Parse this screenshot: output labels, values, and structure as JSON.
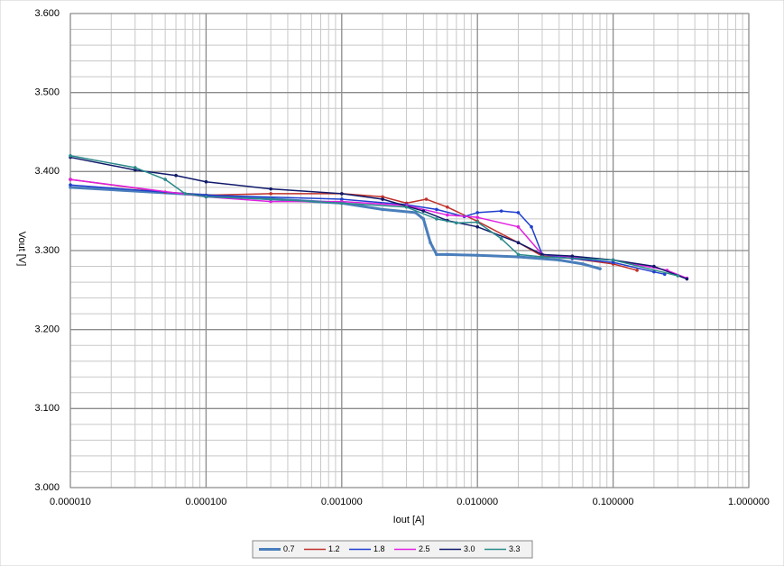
{
  "chart_data": {
    "type": "line",
    "x_label": "Iout [A]",
    "y_label": "Vout [V]",
    "xlog": true,
    "grid": true,
    "minor_grid": true,
    "xlim": [
      1e-05,
      1
    ],
    "ylim": [
      3.0,
      3.6
    ],
    "xticks": [
      {
        "value": 1e-05,
        "label": "0.000010"
      },
      {
        "value": 0.0001,
        "label": "0.000100"
      },
      {
        "value": 0.001,
        "label": "0.001000"
      },
      {
        "value": 0.01,
        "label": "0.010000"
      },
      {
        "value": 0.1,
        "label": "0.100000"
      },
      {
        "value": 1,
        "label": "1.000000"
      }
    ],
    "yticks": [
      {
        "value": 3.0,
        "label": "3.000"
      },
      {
        "value": 3.1,
        "label": "3.100"
      },
      {
        "value": 3.2,
        "label": "3.200"
      },
      {
        "value": 3.3,
        "label": "3.300"
      },
      {
        "value": 3.4,
        "label": "3.400"
      },
      {
        "value": 3.5,
        "label": "3.500"
      },
      {
        "value": 3.6,
        "label": "3.600"
      }
    ],
    "legend": "bottom",
    "series": [
      {
        "name": "0.7",
        "color": "#4a7ebb",
        "width": 3,
        "x": [
          1e-05,
          0.0001,
          0.001,
          0.002,
          0.0035,
          0.004,
          0.0045,
          0.005,
          0.006,
          0.01,
          0.02,
          0.04,
          0.06,
          0.08
        ],
        "values": [
          3.38,
          3.37,
          3.36,
          3.352,
          3.348,
          3.34,
          3.31,
          3.295,
          3.295,
          3.294,
          3.292,
          3.288,
          3.283,
          3.277
        ]
      },
      {
        "name": "1.2",
        "color": "#c0302a",
        "width": 1.5,
        "x": [
          1e-05,
          5e-05,
          0.0001,
          0.0003,
          0.001,
          0.002,
          0.003,
          0.0042,
          0.006,
          0.01,
          0.02,
          0.03,
          0.05,
          0.1,
          0.15
        ],
        "values": [
          3.39,
          3.374,
          3.37,
          3.372,
          3.372,
          3.368,
          3.36,
          3.365,
          3.355,
          3.337,
          3.31,
          3.293,
          3.29,
          3.283,
          3.275
        ]
      },
      {
        "name": "1.8",
        "color": "#1f3fcf",
        "width": 1.5,
        "x": [
          1e-05,
          0.0001,
          0.001,
          0.003,
          0.005,
          0.008,
          0.01,
          0.015,
          0.02,
          0.025,
          0.03,
          0.05,
          0.1,
          0.2,
          0.24
        ],
        "values": [
          3.383,
          3.37,
          3.365,
          3.358,
          3.352,
          3.343,
          3.348,
          3.35,
          3.348,
          3.33,
          3.295,
          3.29,
          3.285,
          3.273,
          3.27
        ]
      },
      {
        "name": "2.5",
        "color": "#e020e0",
        "width": 1.5,
        "x": [
          1e-05,
          0.0001,
          0.0003,
          0.001,
          0.003,
          0.006,
          0.01,
          0.02,
          0.03,
          0.05,
          0.1,
          0.25,
          0.35
        ],
        "values": [
          3.39,
          3.368,
          3.362,
          3.362,
          3.357,
          3.345,
          3.342,
          3.33,
          3.295,
          3.292,
          3.288,
          3.275,
          3.265
        ]
      },
      {
        "name": "3.0",
        "color": "#101a6a",
        "width": 1.5,
        "x": [
          1e-05,
          3e-05,
          6e-05,
          0.0001,
          0.0003,
          0.001,
          0.002,
          0.004,
          0.006,
          0.01,
          0.02,
          0.03,
          0.05,
          0.1,
          0.2,
          0.35
        ],
        "values": [
          3.418,
          3.402,
          3.395,
          3.387,
          3.378,
          3.372,
          3.365,
          3.35,
          3.338,
          3.33,
          3.31,
          3.295,
          3.293,
          3.288,
          3.28,
          3.264
        ]
      },
      {
        "name": "3.3",
        "color": "#2a8a8a",
        "width": 1.5,
        "x": [
          1e-05,
          3e-05,
          5e-05,
          7e-05,
          0.0001,
          0.0003,
          0.001,
          0.003,
          0.005,
          0.007,
          0.01,
          0.015,
          0.02,
          0.03,
          0.1,
          0.3
        ],
        "values": [
          3.42,
          3.405,
          3.39,
          3.372,
          3.368,
          3.365,
          3.36,
          3.355,
          3.34,
          3.335,
          3.336,
          3.315,
          3.295,
          3.292,
          3.288,
          3.268
        ]
      }
    ]
  }
}
